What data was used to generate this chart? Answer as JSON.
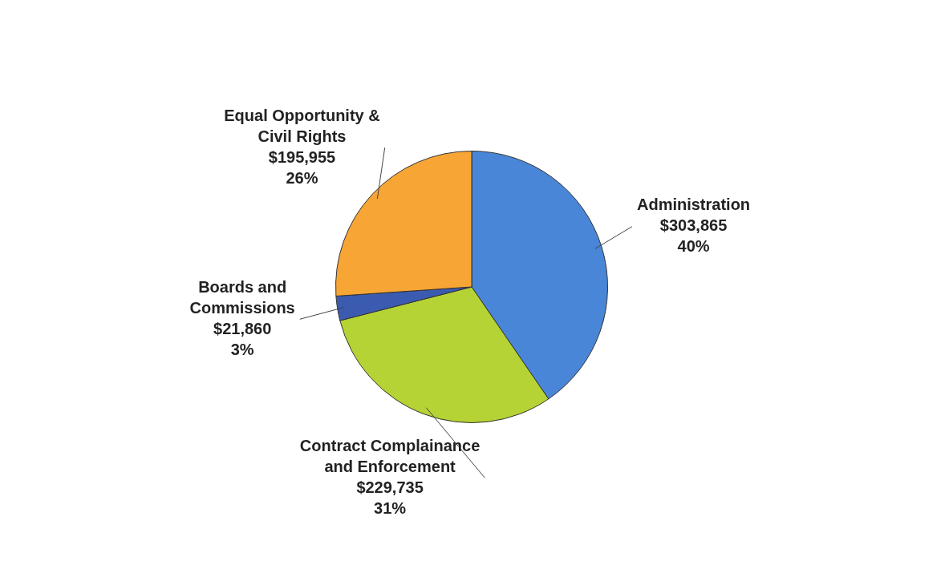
{
  "chart_data": {
    "type": "pie",
    "categories": [
      "Administration",
      "Contract Complainance and Enforcement",
      "Boards and Commissions",
      "Equal Opportunity & Civil Rights"
    ],
    "values": [
      303865,
      229735,
      21860,
      195955
    ],
    "colors": [
      "#4a86d8",
      "#b5d334",
      "#3a5bb0",
      "#f7a535"
    ],
    "value_labels": [
      "$303,865\n40%",
      "$229,735\n31%",
      "$21,860\n3%",
      "$195,955\n26%"
    ],
    "legend": false
  }
}
